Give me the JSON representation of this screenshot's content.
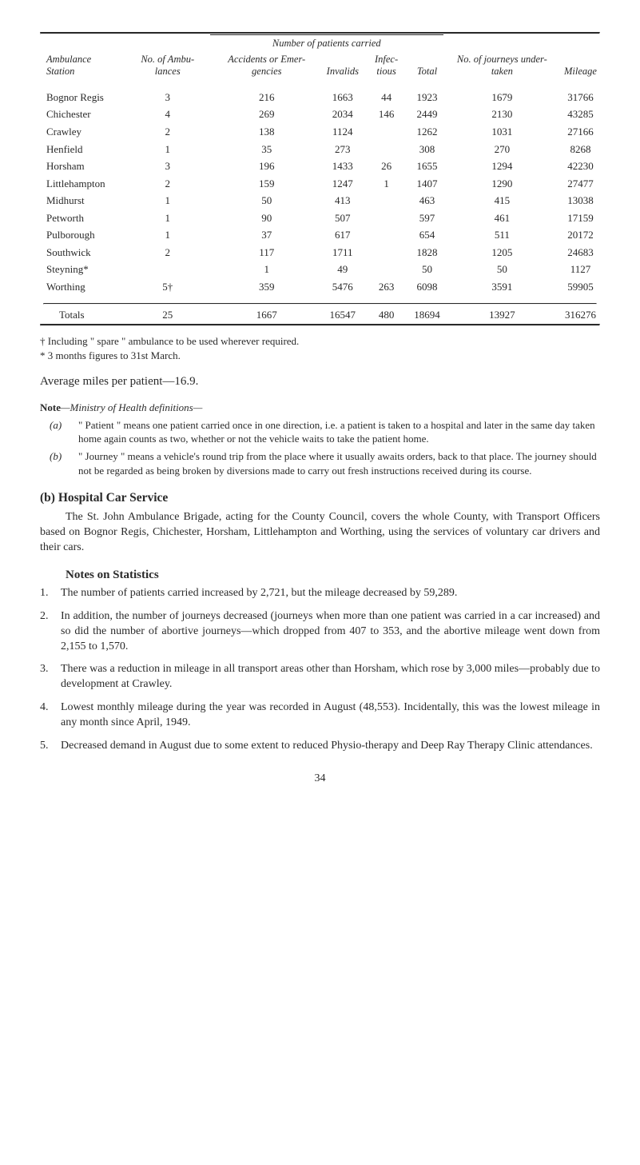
{
  "table": {
    "superheader": "Number of patients carried",
    "columns": [
      "Ambulance Station",
      "No. of Ambu-lances",
      "Accidents or Emer-gencies",
      "Invalids",
      "Infec-tious",
      "Total",
      "No. of journeys under-taken",
      "Mileage"
    ],
    "rows": [
      {
        "station": "Bognor Regis",
        "amb": "3",
        "acc": "216",
        "inv": "1663",
        "inf": "44",
        "tot": "1923",
        "jrn": "1679",
        "mil": "31766"
      },
      {
        "station": "Chichester",
        "amb": "4",
        "acc": "269",
        "inv": "2034",
        "inf": "146",
        "tot": "2449",
        "jrn": "2130",
        "mil": "43285"
      },
      {
        "station": "Crawley",
        "amb": "2",
        "acc": "138",
        "inv": "1124",
        "inf": "",
        "tot": "1262",
        "jrn": "1031",
        "mil": "27166"
      },
      {
        "station": "Henfield",
        "amb": "1",
        "acc": "35",
        "inv": "273",
        "inf": "",
        "tot": "308",
        "jrn": "270",
        "mil": "8268"
      },
      {
        "station": "Horsham",
        "amb": "3",
        "acc": "196",
        "inv": "1433",
        "inf": "26",
        "tot": "1655",
        "jrn": "1294",
        "mil": "42230"
      },
      {
        "station": "Littlehampton",
        "amb": "2",
        "acc": "159",
        "inv": "1247",
        "inf": "1",
        "tot": "1407",
        "jrn": "1290",
        "mil": "27477"
      },
      {
        "station": "Midhurst",
        "amb": "1",
        "acc": "50",
        "inv": "413",
        "inf": "",
        "tot": "463",
        "jrn": "415",
        "mil": "13038"
      },
      {
        "station": "Petworth",
        "amb": "1",
        "acc": "90",
        "inv": "507",
        "inf": "",
        "tot": "597",
        "jrn": "461",
        "mil": "17159"
      },
      {
        "station": "Pulborough",
        "amb": "1",
        "acc": "37",
        "inv": "617",
        "inf": "",
        "tot": "654",
        "jrn": "511",
        "mil": "20172"
      },
      {
        "station": "Southwick",
        "amb": "2",
        "acc": "117",
        "inv": "1711",
        "inf": "",
        "tot": "1828",
        "jrn": "1205",
        "mil": "24683"
      },
      {
        "station": "Steyning*",
        "amb": "",
        "acc": "1",
        "inv": "49",
        "inf": "",
        "tot": "50",
        "jrn": "50",
        "mil": "1127"
      },
      {
        "station": "Worthing",
        "amb": "5†",
        "acc": "359",
        "inv": "5476",
        "inf": "263",
        "tot": "6098",
        "jrn": "3591",
        "mil": "59905"
      }
    ],
    "totals": {
      "station": "Totals",
      "amb": "25",
      "acc": "1667",
      "inv": "16547",
      "inf": "480",
      "tot": "18694",
      "jrn": "13927",
      "mil": "316276"
    }
  },
  "footnotes": {
    "dagger": "† Including \" spare \" ambulance to be used wherever required.",
    "asterisk": "* 3 months figures to 31st March."
  },
  "average_line": "Average miles per patient—16.9.",
  "note_block": {
    "label": "Note",
    "dash_italic": "—Ministry of Health definitions—",
    "items": [
      {
        "tag": "(a)",
        "body": "\" Patient \" means one patient carried once in one direction, i.e. a patient is taken to a hospital and later in the same day taken home again counts as two, whether or not the vehicle waits to take the patient home."
      },
      {
        "tag": "(b)",
        "body": "\" Journey \" means a vehicle's round trip from the place where it usually awaits orders, back to that place. The journey should not be regarded as being broken by diversions made to carry out fresh instructions received during its course."
      }
    ]
  },
  "section_b": {
    "tag": "(b)",
    "title": "Hospital Car Service",
    "para": "The St. John Ambulance Brigade, acting for the County Council, covers the whole County, with Transport Officers based on Bognor Regis, Chichester, Horsham, Littlehampton and Worthing, using the services of voluntary car drivers and their cars."
  },
  "stats": {
    "heading": "Notes on Statistics",
    "items": [
      "The number of patients carried increased by 2,721, but the mileage decreased by 59,289.",
      "In addition, the number of journeys decreased (journeys when more than one patient was carried in a car increased) and so did the number of abortive journeys—which dropped from 407 to 353, and the abortive mileage went down from 2,155 to 1,570.",
      "There was a reduction in mileage in all transport areas other than Horsham, which rose by 3,000 miles—probably due to development at Crawley.",
      "Lowest monthly mileage during the year was recorded in August (48,553). Incidentally, this was the lowest mileage in any month since April, 1949.",
      "Decreased demand in August due to some extent to reduced Physio-therapy and Deep Ray Therapy Clinic attendances."
    ]
  },
  "pagenum": "34",
  "colors": {
    "text": "#2a2a2a",
    "rule": "#2a2a2a",
    "bg": "#ffffff"
  }
}
